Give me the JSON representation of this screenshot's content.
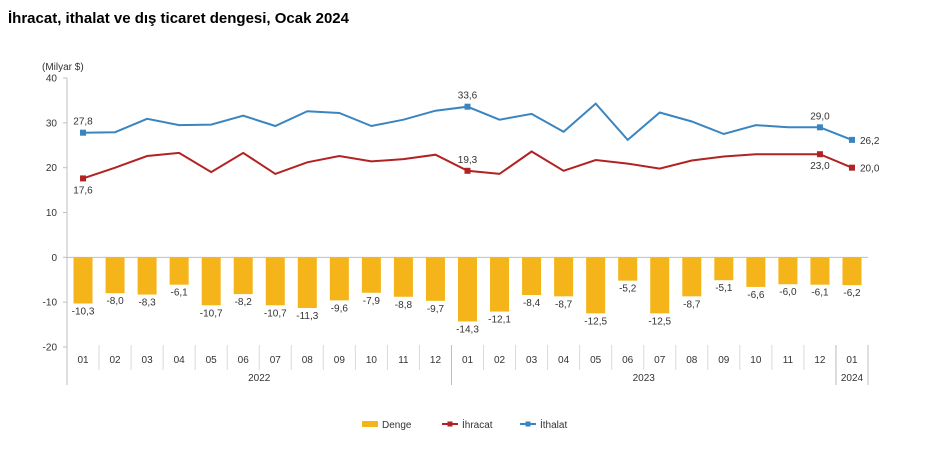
{
  "chart_data": {
    "type": "bar+line",
    "title": "İhracat, ithalat ve dış ticaret dengesi, Ocak 2024",
    "ylabel": "(Milyar $)",
    "ylim": [
      -20,
      40
    ],
    "yticks": [
      40,
      30,
      20,
      10,
      0,
      -10,
      -20
    ],
    "categories": [
      "01",
      "02",
      "03",
      "04",
      "05",
      "06",
      "07",
      "08",
      "09",
      "10",
      "11",
      "12",
      "01",
      "02",
      "03",
      "04",
      "05",
      "06",
      "07",
      "08",
      "09",
      "10",
      "11",
      "12",
      "01"
    ],
    "year_groups": [
      {
        "label": "2022",
        "from": 0,
        "to": 11
      },
      {
        "label": "2023",
        "from": 12,
        "to": 23
      },
      {
        "label": "2024",
        "from": 24,
        "to": 24
      }
    ],
    "series": [
      {
        "name": "Denge",
        "type": "bar",
        "color": "#F4B41A",
        "values": [
          -10.3,
          -8.0,
          -8.3,
          -6.1,
          -10.7,
          -8.2,
          -10.7,
          -11.3,
          -9.6,
          -7.9,
          -8.8,
          -9.7,
          -14.3,
          -12.1,
          -8.4,
          -8.7,
          -12.5,
          -5.2,
          -12.5,
          -8.7,
          -5.1,
          -6.6,
          -6.0,
          -6.1,
          -6.2
        ],
        "labels": [
          "-10,3",
          "-8,0",
          "-8,3",
          "-6,1",
          "-10,7",
          "-8,2",
          "-10,7",
          "-11,3",
          "-9,6",
          "-7,9",
          "-8,8",
          "-9,7",
          "-14,3",
          "-12,1",
          "-8,4",
          "-8,7",
          "-12,5",
          "-5,2",
          "-12,5",
          "-8,7",
          "-5,1",
          "-6,6",
          "-6,0",
          "-6,1",
          "-6,2"
        ]
      },
      {
        "name": "İhracat",
        "type": "line",
        "color": "#B22222",
        "values": [
          17.6,
          20.0,
          22.6,
          23.3,
          19.0,
          23.3,
          18.6,
          21.2,
          22.6,
          21.4,
          21.9,
          22.9,
          19.3,
          18.6,
          23.6,
          19.3,
          21.7,
          20.9,
          19.8,
          21.6,
          22.5,
          23.0,
          23.0,
          23.0,
          20.0
        ],
        "annotations": [
          {
            "index": 0,
            "text": "17,6",
            "pos": "below"
          },
          {
            "index": 12,
            "text": "19,3",
            "pos": "above"
          },
          {
            "index": 23,
            "text": "23,0",
            "pos": "below"
          },
          {
            "index": 24,
            "text": "20,0",
            "pos": "right"
          }
        ]
      },
      {
        "name": "İthalat",
        "type": "line",
        "color": "#3A85C0",
        "values": [
          27.8,
          27.9,
          30.9,
          29.5,
          29.6,
          31.6,
          29.3,
          32.6,
          32.2,
          29.3,
          30.7,
          32.7,
          33.6,
          30.7,
          32.0,
          28.0,
          34.3,
          26.2,
          32.3,
          30.3,
          27.5,
          29.5,
          29.0,
          29.0,
          26.2
        ],
        "annotations": [
          {
            "index": 0,
            "text": "27,8",
            "pos": "above"
          },
          {
            "index": 12,
            "text": "33,6",
            "pos": "above"
          },
          {
            "index": 23,
            "text": "29,0",
            "pos": "above"
          },
          {
            "index": 24,
            "text": "26,2",
            "pos": "right"
          }
        ]
      }
    ],
    "legend": [
      "Denge",
      "İhracat",
      "İthalat"
    ],
    "legend_position": "bottom"
  }
}
